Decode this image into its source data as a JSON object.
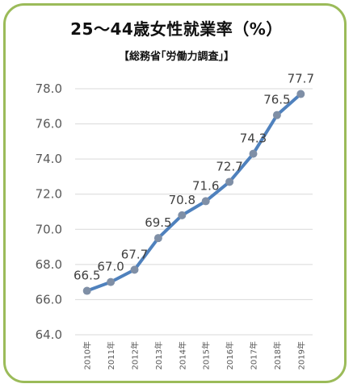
{
  "title": "25～44歳女性就業率（%）",
  "subtitle": "【総務省｢労働力調査｣】",
  "colors": {
    "border": "#9bbb59",
    "line": "#4f81bd",
    "marker": "#7f8fa6",
    "grid": "#d9d9d9"
  },
  "chart_data": {
    "type": "line",
    "categories": [
      "2010年",
      "2011年",
      "2012年",
      "2013年",
      "2014年",
      "2015年",
      "2016年",
      "2017年",
      "2018年",
      "2019年"
    ],
    "values": [
      66.5,
      67.0,
      67.7,
      69.5,
      70.8,
      71.6,
      72.7,
      74.3,
      76.5,
      77.7
    ],
    "data_labels": [
      "66.5",
      "67.0",
      "67.7",
      "69.5",
      "70.8",
      "71.6",
      "72.7",
      "74.3",
      "76.5",
      "77.7"
    ],
    "yticks": [
      "64.0",
      "66.0",
      "68.0",
      "70.0",
      "72.0",
      "74.0",
      "76.0",
      "78.0"
    ],
    "ylim": [
      64,
      78
    ],
    "grid": true
  }
}
